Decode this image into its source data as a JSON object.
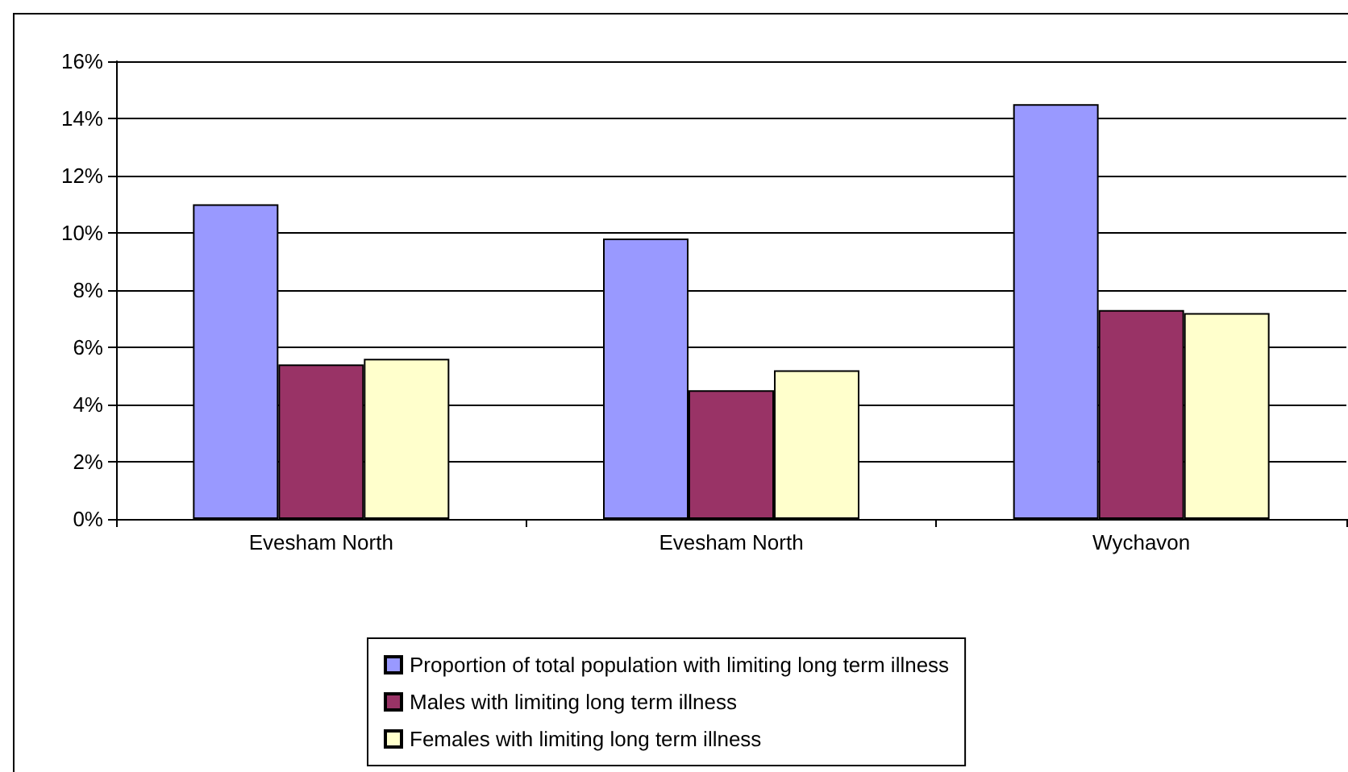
{
  "chart_data": {
    "type": "bar",
    "categories": [
      "Evesham North",
      "Evesham North",
      "Wychavon"
    ],
    "series": [
      {
        "name": "Proportion of total population with limiting long term illness",
        "color": "#9999ff",
        "values": [
          11.0,
          9.8,
          14.5
        ]
      },
      {
        "name": "Males with limiting long term illness",
        "color": "#993366",
        "values": [
          5.4,
          4.5,
          7.3
        ]
      },
      {
        "name": "Females with limiting long term illness",
        "color": "#ffffcc",
        "values": [
          5.6,
          5.2,
          7.2
        ]
      }
    ],
    "ylim": [
      0,
      16
    ],
    "yticks": [
      {
        "value": 0,
        "label": "0%"
      },
      {
        "value": 2,
        "label": "2%"
      },
      {
        "value": 4,
        "label": "4%"
      },
      {
        "value": 6,
        "label": "6%"
      },
      {
        "value": 8,
        "label": "8%"
      },
      {
        "value": 10,
        "label": "10%"
      },
      {
        "value": 12,
        "label": "12%"
      },
      {
        "value": 14,
        "label": "14%"
      },
      {
        "value": 16,
        "label": "16%"
      }
    ],
    "grid": "y",
    "legend": "bottom"
  }
}
